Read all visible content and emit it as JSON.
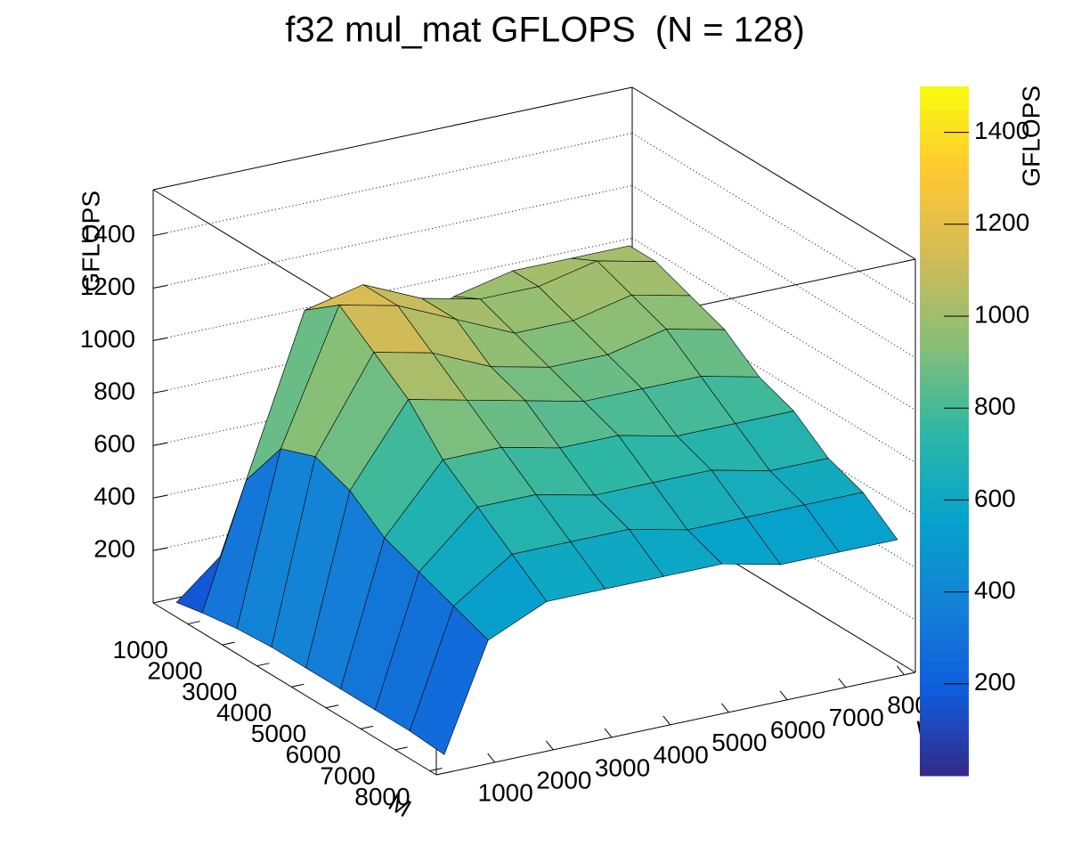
{
  "chart_data": {
    "type": "surface",
    "title": "f32 mul_mat GFLOPS  (N = 128)",
    "x_label": "K",
    "y_label": "M",
    "z_label": "GFLOPS",
    "x": [
      250,
      1000,
      2000,
      3000,
      4000,
      5000,
      6000,
      7000,
      8000
    ],
    "y": [
      250,
      1000,
      2000,
      3000,
      4000,
      5000,
      6000,
      7000,
      8000
    ],
    "z": [
      [
        10,
        150,
        450,
        700,
        850,
        950,
        1000,
        1000,
        1000
      ],
      [
        30,
        500,
        1100,
        1150,
        1050,
        1000,
        1000,
        1050,
        1000
      ],
      [
        50,
        700,
        1200,
        1150,
        1050,
        950,
        950,
        1000,
        950
      ],
      [
        60,
        750,
        1100,
        1050,
        950,
        900,
        900,
        950,
        900
      ],
      [
        60,
        700,
        1000,
        950,
        900,
        850,
        850,
        850,
        800
      ],
      [
        60,
        600,
        850,
        850,
        800,
        800,
        750,
        750,
        750
      ],
      [
        60,
        550,
        750,
        750,
        700,
        700,
        700,
        650,
        650
      ],
      [
        60,
        500,
        650,
        650,
        650,
        600,
        600,
        600,
        600
      ],
      [
        50,
        450,
        550,
        550,
        550,
        550,
        500,
        500,
        500
      ]
    ],
    "xlim": [
      0,
      8192
    ],
    "ylim": [
      0,
      8192
    ],
    "zlim": [
      0,
      1575
    ],
    "xticks": [
      1000,
      2000,
      3000,
      4000,
      5000,
      6000,
      7000,
      8000
    ],
    "yticks": [
      1000,
      2000,
      3000,
      4000,
      5000,
      6000,
      7000,
      8000
    ],
    "zticks": [
      200,
      400,
      600,
      800,
      1000,
      1200,
      1400
    ],
    "grid": true,
    "colorbar": {
      "label": "GFLOPS",
      "lim": [
        0,
        1500
      ],
      "ticks": [
        200,
        400,
        600,
        800,
        1000,
        1200,
        1400
      ],
      "palette": [
        "#352a87",
        "#0f5cdd",
        "#1481d6",
        "#06a4ca",
        "#2eb7a4",
        "#87bf77",
        "#d1bb59",
        "#fec832",
        "#f9fb0e"
      ]
    }
  }
}
